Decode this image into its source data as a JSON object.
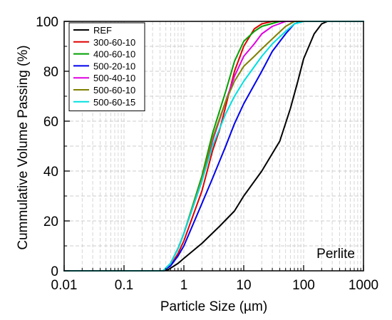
{
  "chart_data": {
    "type": "line",
    "xscale": "log",
    "xlim": [
      0.01,
      1000
    ],
    "ylim": [
      0,
      100
    ],
    "xlabel": "Particle Size (µm)",
    "ylabel": "Cummulative Volume Passing (%)",
    "xticks": [
      "0.01",
      "0.1",
      "1",
      "10",
      "100",
      "1000"
    ],
    "yticks": [
      "0",
      "20",
      "40",
      "60",
      "80",
      "100"
    ],
    "grid": "dashed minor and major",
    "legend_position": "top-left",
    "annotation": "Perlite",
    "series": [
      {
        "name": "REF",
        "color": "#000000",
        "points": [
          [
            0.01,
            0
          ],
          [
            0.45,
            0
          ],
          [
            0.55,
            0.5
          ],
          [
            0.8,
            3
          ],
          [
            1,
            5
          ],
          [
            2,
            11
          ],
          [
            4,
            18
          ],
          [
            7,
            24
          ],
          [
            10,
            30
          ],
          [
            20,
            40
          ],
          [
            40,
            52
          ],
          [
            60,
            65
          ],
          [
            80,
            76
          ],
          [
            100,
            85
          ],
          [
            150,
            95
          ],
          [
            200,
            99
          ],
          [
            250,
            100
          ],
          [
            1000,
            100
          ]
        ]
      },
      {
        "name": "300-60-10",
        "color": "#e00000",
        "points": [
          [
            0.01,
            0
          ],
          [
            0.45,
            0
          ],
          [
            0.6,
            2
          ],
          [
            0.8,
            7
          ],
          [
            1,
            12
          ],
          [
            2,
            32
          ],
          [
            3,
            48
          ],
          [
            4,
            57
          ],
          [
            5,
            66
          ],
          [
            7,
            80
          ],
          [
            10,
            90
          ],
          [
            15,
            97
          ],
          [
            20,
            99
          ],
          [
            30,
            100
          ],
          [
            1000,
            100
          ]
        ]
      },
      {
        "name": "400-60-10",
        "color": "#00a000",
        "points": [
          [
            0.01,
            0
          ],
          [
            0.45,
            0
          ],
          [
            0.6,
            3
          ],
          [
            0.8,
            9
          ],
          [
            1,
            15
          ],
          [
            2,
            38
          ],
          [
            3,
            55
          ],
          [
            5,
            72
          ],
          [
            7,
            84
          ],
          [
            10,
            92
          ],
          [
            15,
            96
          ],
          [
            20,
            98
          ],
          [
            40,
            100
          ],
          [
            1000,
            100
          ]
        ]
      },
      {
        "name": "500-20-10",
        "color": "#0000ee",
        "points": [
          [
            0.01,
            0
          ],
          [
            0.45,
            0
          ],
          [
            0.6,
            2
          ],
          [
            0.8,
            6
          ],
          [
            1,
            10
          ],
          [
            2,
            27
          ],
          [
            3,
            37
          ],
          [
            5,
            50
          ],
          [
            7,
            59
          ],
          [
            10,
            67
          ],
          [
            20,
            80
          ],
          [
            30,
            88
          ],
          [
            50,
            95
          ],
          [
            70,
            99
          ],
          [
            90,
            100
          ],
          [
            1000,
            100
          ]
        ]
      },
      {
        "name": "500-40-10",
        "color": "#e000e0",
        "points": [
          [
            0.01,
            0
          ],
          [
            0.45,
            0
          ],
          [
            0.6,
            3
          ],
          [
            0.8,
            9
          ],
          [
            1,
            15
          ],
          [
            2,
            36
          ],
          [
            3,
            52
          ],
          [
            5,
            68
          ],
          [
            7,
            78
          ],
          [
            10,
            86
          ],
          [
            15,
            91
          ],
          [
            20,
            95
          ],
          [
            30,
            98
          ],
          [
            50,
            100
          ],
          [
            1000,
            100
          ]
        ]
      },
      {
        "name": "500-60-10",
        "color": "#808000",
        "points": [
          [
            0.01,
            0
          ],
          [
            0.45,
            0
          ],
          [
            0.6,
            3
          ],
          [
            0.8,
            9
          ],
          [
            1,
            15
          ],
          [
            2,
            37
          ],
          [
            3,
            53
          ],
          [
            5,
            68
          ],
          [
            7,
            76
          ],
          [
            10,
            82
          ],
          [
            15,
            86
          ],
          [
            20,
            89
          ],
          [
            30,
            93
          ],
          [
            50,
            98
          ],
          [
            70,
            100
          ],
          [
            1000,
            100
          ]
        ]
      },
      {
        "name": "500-60-15",
        "color": "#00e0e0",
        "points": [
          [
            0.01,
            0
          ],
          [
            0.45,
            0
          ],
          [
            0.6,
            3
          ],
          [
            0.8,
            9
          ],
          [
            1,
            15
          ],
          [
            2,
            36
          ],
          [
            3,
            50
          ],
          [
            5,
            63
          ],
          [
            7,
            70
          ],
          [
            10,
            76
          ],
          [
            20,
            86
          ],
          [
            30,
            91
          ],
          [
            50,
            96
          ],
          [
            70,
            99
          ],
          [
            100,
            100
          ],
          [
            1000,
            100
          ]
        ]
      }
    ]
  }
}
